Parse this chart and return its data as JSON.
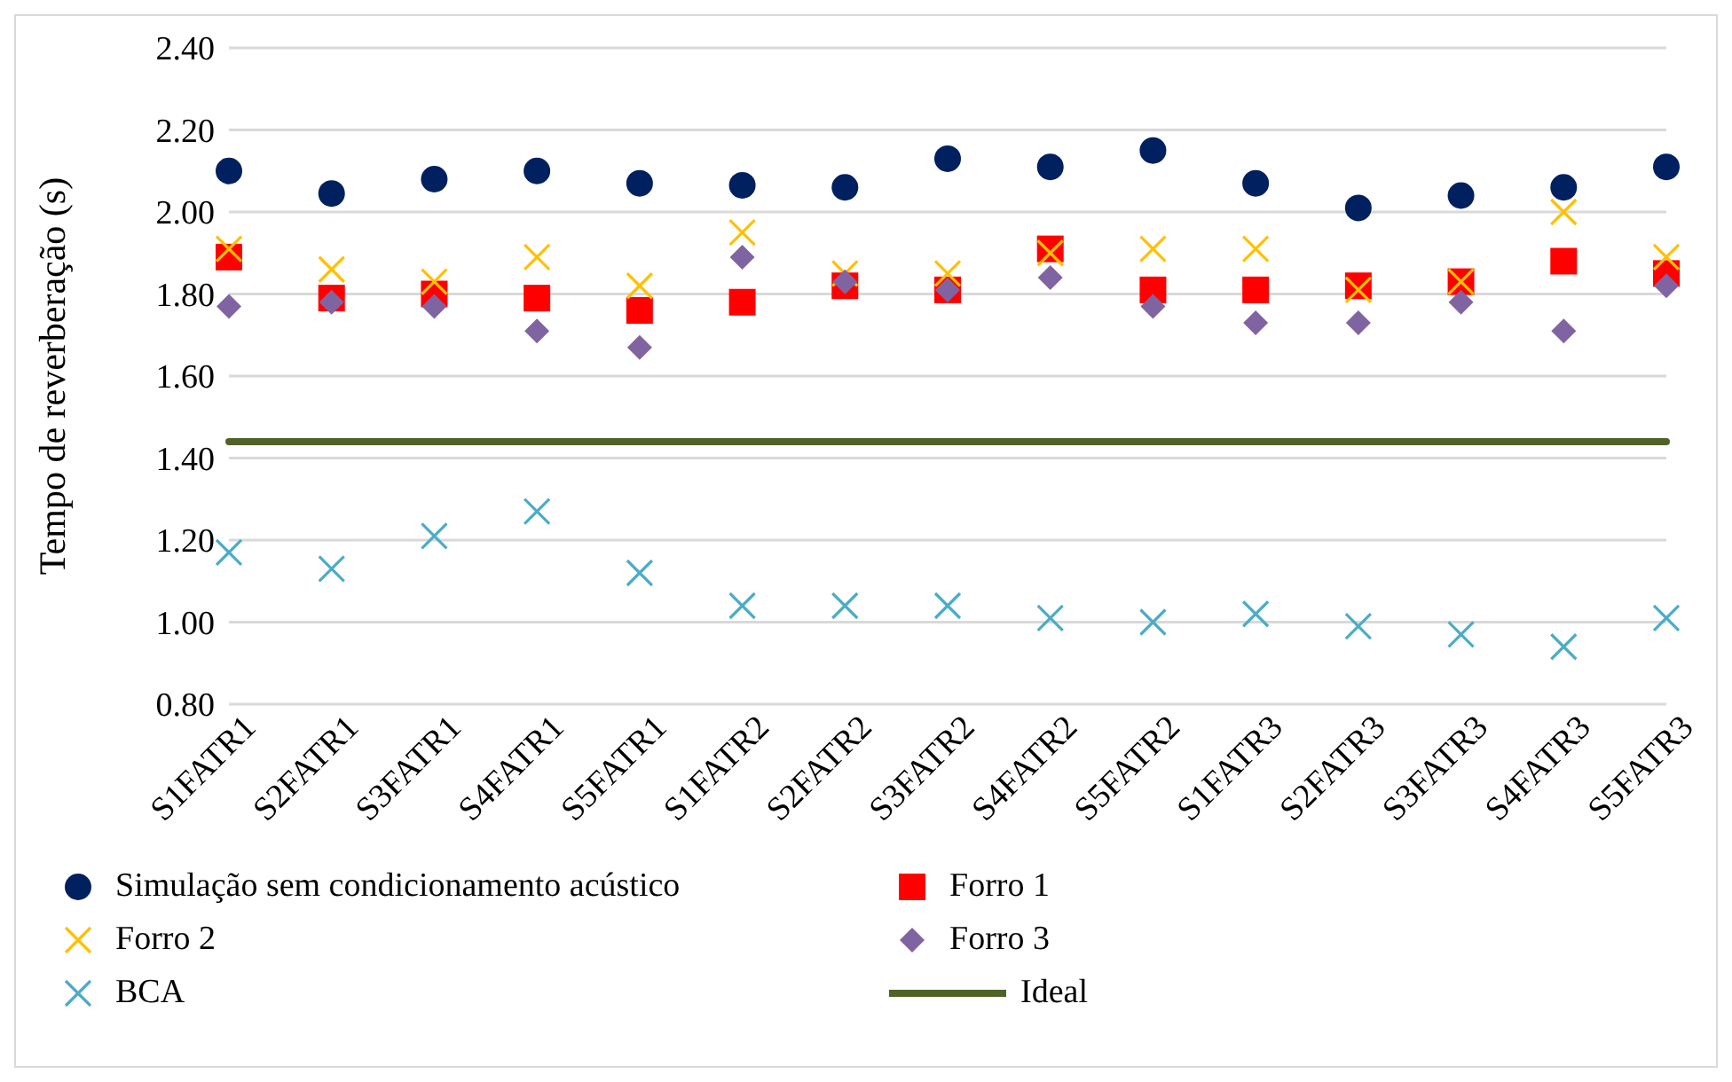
{
  "chart_data": {
    "type": "scatter",
    "ylabel": "Tempo de reverberação (s)",
    "categories": [
      "S1FATR1",
      "S2FATR1",
      "S3FATR1",
      "S4FATR1",
      "S5FATR1",
      "S1FATR2",
      "S2FATR2",
      "S3FATR2",
      "S4FATR2",
      "S5FATR2",
      "S1FATR3",
      "S2FATR3",
      "S3FATR3",
      "S4FATR3",
      "S5FATR3"
    ],
    "series": [
      {
        "name": "Simulação sem condicionamento acústico",
        "color": "#002060",
        "marker": "circle",
        "values": [
          2.1,
          2.045,
          2.08,
          2.1,
          2.07,
          2.065,
          2.06,
          2.13,
          2.11,
          2.15,
          2.07,
          2.01,
          2.04,
          2.06,
          2.11
        ]
      },
      {
        "name": "Forro 1",
        "color": "#ff0000",
        "marker": "square",
        "values": [
          1.89,
          1.79,
          1.8,
          1.79,
          1.76,
          1.78,
          1.82,
          1.81,
          1.91,
          1.81,
          1.81,
          1.82,
          1.83,
          1.88,
          1.85
        ]
      },
      {
        "name": "Forro 2",
        "color": "#ffc000",
        "marker": "cross",
        "values": [
          1.91,
          1.86,
          1.83,
          1.89,
          1.82,
          1.95,
          1.85,
          1.85,
          1.9,
          1.91,
          1.91,
          1.81,
          1.83,
          2.0,
          1.89
        ]
      },
      {
        "name": "Forro 3",
        "color": "#8064a2",
        "marker": "diamond",
        "values": [
          1.77,
          1.78,
          1.77,
          1.71,
          1.67,
          1.89,
          1.83,
          1.81,
          1.84,
          1.77,
          1.73,
          1.73,
          1.78,
          1.71,
          1.82
        ]
      },
      {
        "name": "BCA",
        "color": "#4bacc6",
        "marker": "cross",
        "values": [
          1.17,
          1.13,
          1.21,
          1.27,
          1.12,
          1.04,
          1.04,
          1.04,
          1.01,
          1.0,
          1.02,
          0.99,
          0.97,
          0.94,
          1.01
        ]
      },
      {
        "name": "Ideal",
        "type": "line",
        "color": "#4f6228",
        "marker": "none",
        "values": [
          1.44,
          1.44,
          1.44,
          1.44,
          1.44,
          1.44,
          1.44,
          1.44,
          1.44,
          1.44,
          1.44,
          1.44,
          1.44,
          1.44,
          1.44
        ]
      }
    ],
    "ylim": [
      0.8,
      2.4
    ],
    "yticks": [
      {
        "value": 0.8,
        "label": "0.80"
      },
      {
        "value": 1.0,
        "label": "1.00"
      },
      {
        "value": 1.2,
        "label": "1.20"
      },
      {
        "value": 1.4,
        "label": "1.40"
      },
      {
        "value": 1.6,
        "label": "1.60"
      },
      {
        "value": 1.8,
        "label": "1.80"
      },
      {
        "value": 2.0,
        "label": "2.00"
      },
      {
        "value": 2.2,
        "label": "2.20"
      },
      {
        "value": 2.4,
        "label": "2.40"
      }
    ],
    "grid": "y",
    "legend": "bottom"
  }
}
